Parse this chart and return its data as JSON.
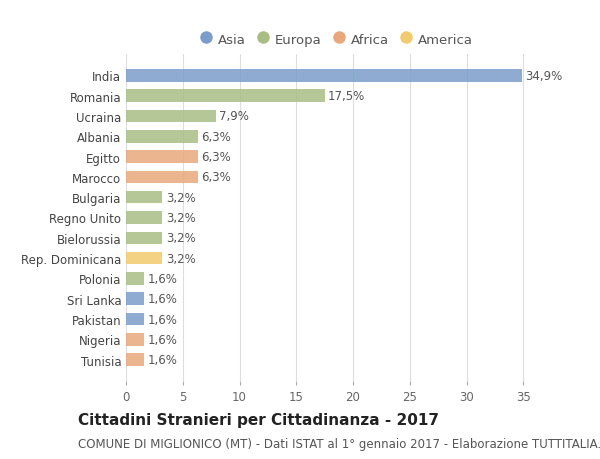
{
  "countries": [
    "India",
    "Romania",
    "Ucraina",
    "Albania",
    "Egitto",
    "Marocco",
    "Bulgaria",
    "Regno Unito",
    "Bielorussia",
    "Rep. Dominicana",
    "Polonia",
    "Sri Lanka",
    "Pakistan",
    "Nigeria",
    "Tunisia"
  ],
  "values": [
    34.9,
    17.5,
    7.9,
    6.3,
    6.3,
    6.3,
    3.2,
    3.2,
    3.2,
    3.2,
    1.6,
    1.6,
    1.6,
    1.6,
    1.6
  ],
  "labels": [
    "34,9%",
    "17,5%",
    "7,9%",
    "6,3%",
    "6,3%",
    "6,3%",
    "3,2%",
    "3,2%",
    "3,2%",
    "3,2%",
    "1,6%",
    "1,6%",
    "1,6%",
    "1,6%",
    "1,6%"
  ],
  "continents": [
    "Asia",
    "Europa",
    "Europa",
    "Europa",
    "Africa",
    "Africa",
    "Europa",
    "Europa",
    "Europa",
    "America",
    "Europa",
    "Asia",
    "Asia",
    "Africa",
    "Africa"
  ],
  "continent_colors": {
    "Asia": "#7b9dc9",
    "Europa": "#a8be85",
    "Africa": "#e8a87c",
    "America": "#f2cb6e"
  },
  "legend_order": [
    "Asia",
    "Europa",
    "Africa",
    "America"
  ],
  "title": "Cittadini Stranieri per Cittadinanza - 2017",
  "subtitle": "COMUNE DI MIGLIONICO (MT) - Dati ISTAT al 1° gennaio 2017 - Elaborazione TUTTITALIA.IT",
  "xlim": [
    0,
    37
  ],
  "xticks": [
    0,
    5,
    10,
    15,
    20,
    25,
    30,
    35
  ],
  "background_color": "#ffffff",
  "bar_height": 0.62,
  "title_fontsize": 11,
  "subtitle_fontsize": 8.5,
  "label_fontsize": 8.5,
  "tick_fontsize": 8.5,
  "legend_fontsize": 9.5,
  "grid_color": "#dddddd"
}
